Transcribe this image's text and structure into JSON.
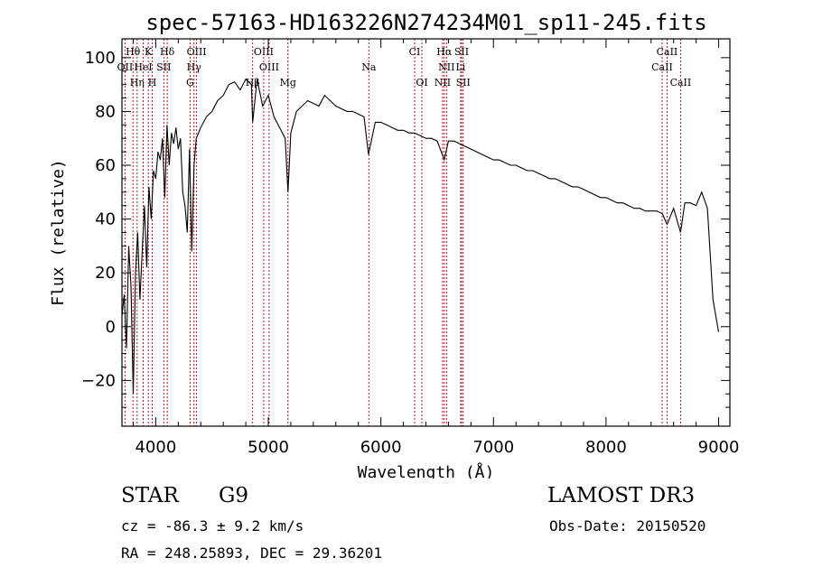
{
  "chart_data": {
    "type": "line",
    "title": "spec-57163-HD163226N274234M01_sp11-245.fits",
    "xlabel": "Wavelength (Å)",
    "ylabel": "Flux (relative)",
    "xlim": [
      3700,
      9100
    ],
    "ylim": [
      -37,
      107
    ],
    "xticks": [
      4000,
      5000,
      6000,
      7000,
      8000,
      9000
    ],
    "yticks": [
      -20,
      0,
      20,
      40,
      60,
      80,
      100
    ],
    "x": [
      3700,
      3720,
      3740,
      3760,
      3780,
      3800,
      3820,
      3840,
      3860,
      3880,
      3900,
      3920,
      3940,
      3960,
      3980,
      4000,
      4020,
      4040,
      4060,
      4080,
      4100,
      4120,
      4140,
      4160,
      4180,
      4200,
      4220,
      4240,
      4260,
      4280,
      4300,
      4320,
      4340,
      4360,
      4380,
      4400,
      4450,
      4500,
      4550,
      4600,
      4650,
      4700,
      4750,
      4800,
      4850,
      4861,
      4900,
      4950,
      5000,
      5050,
      5100,
      5150,
      5175,
      5200,
      5250,
      5300,
      5350,
      5400,
      5450,
      5500,
      5550,
      5600,
      5650,
      5700,
      5750,
      5800,
      5850,
      5890,
      5950,
      6000,
      6050,
      6100,
      6150,
      6200,
      6250,
      6300,
      6350,
      6400,
      6450,
      6500,
      6563,
      6600,
      6650,
      6700,
      6750,
      6800,
      6850,
      6900,
      6950,
      7000,
      7050,
      7100,
      7150,
      7200,
      7250,
      7300,
      7350,
      7400,
      7450,
      7500,
      7550,
      7600,
      7650,
      7700,
      7750,
      7800,
      7850,
      7900,
      7950,
      8000,
      8050,
      8100,
      8150,
      8200,
      8250,
      8300,
      8350,
      8400,
      8450,
      8500,
      8542,
      8600,
      8662,
      8700,
      8750,
      8800,
      8850,
      8900,
      8950,
      9000
    ],
    "values": [
      4,
      12,
      -8,
      30,
      15,
      -25,
      20,
      35,
      10,
      28,
      45,
      22,
      52,
      40,
      58,
      55,
      65,
      62,
      70,
      48,
      75,
      60,
      72,
      68,
      74,
      66,
      70,
      50,
      45,
      35,
      66,
      28,
      60,
      70,
      72,
      74,
      78,
      80,
      84,
      86,
      90,
      91,
      88,
      92,
      90,
      76,
      92,
      82,
      86,
      78,
      74,
      70,
      50,
      72,
      80,
      82,
      84,
      83,
      82,
      86,
      84,
      82,
      81,
      80,
      80,
      79,
      78,
      64,
      76,
      76,
      75,
      74,
      73,
      73,
      72,
      72,
      71,
      70,
      70,
      69,
      62,
      69,
      69,
      68,
      67,
      66,
      65,
      64,
      63,
      62,
      62,
      61,
      60,
      60,
      59,
      58,
      58,
      57,
      56,
      55,
      55,
      54,
      53,
      52,
      52,
      51,
      50,
      49,
      48,
      48,
      47,
      46,
      46,
      45,
      44,
      44,
      43,
      43,
      43,
      42,
      38,
      44,
      35,
      46,
      46,
      45,
      50,
      44,
      10,
      -2
    ],
    "lines": [
      {
        "label": "Hθ",
        "x": 3798
      },
      {
        "label": "K",
        "x": 3934
      },
      {
        "label": "Hδ",
        "x": 4102
      },
      {
        "label": "OIII",
        "x": 4363
      },
      {
        "label": "OIII",
        "x": 4959
      },
      {
        "label": "CI",
        "x": 6300
      },
      {
        "label": "Hα",
        "x": 6563
      },
      {
        "label": "SII",
        "x": 6717
      },
      {
        "label": "CaII",
        "x": 8542
      },
      {
        "label": "OII",
        "x": 3727
      },
      {
        "label": "HeI",
        "x": 3889
      },
      {
        "label": "SII",
        "x": 4072
      },
      {
        "label": "Hγ",
        "x": 4340
      },
      {
        "label": "OIII",
        "x": 5007
      },
      {
        "label": "Na",
        "x": 5893
      },
      {
        "label": "NII",
        "x": 6583
      },
      {
        "label": "Li",
        "x": 6708
      },
      {
        "label": "CaII",
        "x": 8498
      },
      {
        "label": "Hη",
        "x": 3835
      },
      {
        "label": "H",
        "x": 3969
      },
      {
        "label": "G",
        "x": 4305
      },
      {
        "label": "Hβ",
        "x": 4861
      },
      {
        "label": "Mg",
        "x": 5175
      },
      {
        "label": "OI",
        "x": 6364
      },
      {
        "label": "NII",
        "x": 6548
      },
      {
        "label": "SII",
        "x": 6731
      },
      {
        "label": "CaII",
        "x": 8662
      }
    ]
  },
  "info": {
    "object_type": "STAR",
    "spectral_class": "G9",
    "survey": "LAMOST DR3",
    "cz": "cz = -86.3 ± 9.2 km/s",
    "obs_date": "Obs-Date: 20150520",
    "radec": "RA = 248.25893, DEC =  29.36201"
  }
}
